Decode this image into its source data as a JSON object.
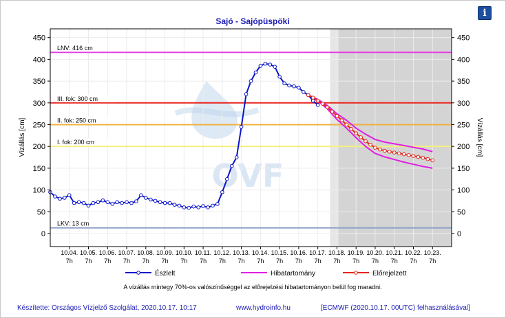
{
  "icons": {
    "info": "info-icon",
    "info_glyph": "i",
    "watermark": "ovf-logo"
  },
  "watermark_text": "OVF",
  "chart_data": {
    "type": "line",
    "title": "Sajó - Sajópüspöki",
    "ylabel_left": "Vízállás [cm]",
    "ylabel_right": "Vízállás [cm]",
    "ylim": [
      -30,
      470
    ],
    "yticks": [
      0,
      50,
      100,
      150,
      200,
      250,
      300,
      350,
      400,
      450
    ],
    "x_range": [
      0,
      21
    ],
    "x_tick_labels": [
      {
        "x": 1,
        "date": "10.04.",
        "hour": "7h"
      },
      {
        "x": 2,
        "date": "10.05.",
        "hour": "7h"
      },
      {
        "x": 3,
        "date": "10.06.",
        "hour": "7h"
      },
      {
        "x": 4,
        "date": "10.07.",
        "hour": "7h"
      },
      {
        "x": 5,
        "date": "10.08.",
        "hour": "7h"
      },
      {
        "x": 6,
        "date": "10.09.",
        "hour": "7h"
      },
      {
        "x": 7,
        "date": "10.10.",
        "hour": "7h"
      },
      {
        "x": 8,
        "date": "10.11.",
        "hour": "7h"
      },
      {
        "x": 9,
        "date": "10.12.",
        "hour": "7h"
      },
      {
        "x": 10,
        "date": "10.13.",
        "hour": "7h"
      },
      {
        "x": 11,
        "date": "10.14.",
        "hour": "7h"
      },
      {
        "x": 12,
        "date": "10.15.",
        "hour": "7h"
      },
      {
        "x": 13,
        "date": "10.16.",
        "hour": "7h"
      },
      {
        "x": 14,
        "date": "10.17.",
        "hour": "7h"
      },
      {
        "x": 15,
        "date": "10.18.",
        "hour": "7h"
      },
      {
        "x": 16,
        "date": "10.19.",
        "hour": "7h"
      },
      {
        "x": 17,
        "date": "10.20.",
        "hour": "7h"
      },
      {
        "x": 18,
        "date": "10.21.",
        "hour": "7h"
      },
      {
        "x": 19,
        "date": "10.22.",
        "hour": "7h"
      },
      {
        "x": 20,
        "date": "10.23.",
        "hour": "7h"
      }
    ],
    "forecast_shade_from_x": 14.65,
    "levels": [
      {
        "label": "LNV: 416 cm",
        "value": 416,
        "color": "#e33ee3"
      },
      {
        "label": "III. fok: 300 cm",
        "value": 300,
        "color": "#e8261f"
      },
      {
        "label": "II. fok: 250 cm",
        "value": 250,
        "color": "#f0b040"
      },
      {
        "label": "I. fok: 200 cm",
        "value": 200,
        "color": "#f5f07a"
      },
      {
        "label": "LKV: 13 cm",
        "value": 13,
        "color": "#8fa3c8"
      }
    ],
    "series": [
      {
        "name": "Észlelt",
        "color": "#0a16c8",
        "x": [
          0.0,
          0.25,
          0.5,
          0.75,
          1.0,
          1.25,
          1.5,
          1.75,
          2.0,
          2.25,
          2.5,
          2.75,
          3.0,
          3.25,
          3.5,
          3.75,
          4.0,
          4.25,
          4.5,
          4.75,
          5.0,
          5.25,
          5.5,
          5.75,
          6.0,
          6.25,
          6.5,
          6.75,
          7.0,
          7.25,
          7.5,
          7.75,
          8.0,
          8.25,
          8.5,
          8.75,
          9.0,
          9.25,
          9.5,
          9.75,
          10.0,
          10.25,
          10.5,
          10.75,
          11.0,
          11.25,
          11.5,
          11.75,
          12.0,
          12.25,
          12.5,
          12.75,
          13.0,
          13.25,
          13.5,
          13.75,
          14.0
        ],
        "y": [
          95,
          85,
          80,
          82,
          88,
          70,
          72,
          70,
          64,
          70,
          72,
          76,
          72,
          68,
          72,
          70,
          72,
          70,
          74,
          88,
          82,
          78,
          75,
          72,
          70,
          70,
          66,
          64,
          60,
          59,
          62,
          60,
          63,
          60,
          64,
          68,
          95,
          125,
          155,
          175,
          245,
          320,
          350,
          370,
          385,
          390,
          388,
          383,
          360,
          345,
          340,
          338,
          335,
          325,
          318,
          305,
          295
        ]
      },
      {
        "name": "Hibatartomány",
        "color": "#e11ee1",
        "x": [
          13.5,
          14.0,
          14.5,
          15.0,
          15.5,
          16.0,
          16.5,
          17.0,
          17.5,
          18.0,
          18.5,
          19.0,
          19.5,
          20.0
        ],
        "upper": [
          318,
          308,
          294,
          275,
          260,
          242,
          228,
          216,
          210,
          206,
          202,
          198,
          194,
          188
        ],
        "lower": [
          318,
          304,
          286,
          262,
          242,
          220,
          200,
          184,
          176,
          170,
          164,
          159,
          154,
          150
        ]
      },
      {
        "name": "Előrejelzett",
        "color": "#e2261c",
        "x": [
          13.5,
          13.75,
          14.0,
          14.25,
          14.5,
          14.75,
          15.0,
          15.25,
          15.5,
          15.75,
          16.0,
          16.25,
          16.5,
          16.75,
          17.0,
          17.25,
          17.5,
          17.75,
          18.0,
          18.25,
          18.5,
          18.75,
          19.0,
          19.25,
          19.5,
          19.75,
          20.0
        ],
        "y": [
          318,
          312,
          305,
          298,
          290,
          280,
          270,
          260,
          250,
          240,
          230,
          221,
          212,
          204,
          197,
          193,
          190,
          188,
          186,
          184,
          182,
          180,
          178,
          176,
          174,
          171,
          168
        ]
      }
    ],
    "legend_placement": "bottom",
    "note": "A vízállás mintegy 70%-os valószínűséggel az előrejelzési hibatartományon belül fog maradni.",
    "footer": {
      "maker": "Készítette: Országos Vízjelző Szolgálat, 2020.10.17. 10:17",
      "url": "www.hydroinfo.hu",
      "source": "[ECMWF (2020.10.17. 00UTC) felhasználásával]"
    }
  }
}
